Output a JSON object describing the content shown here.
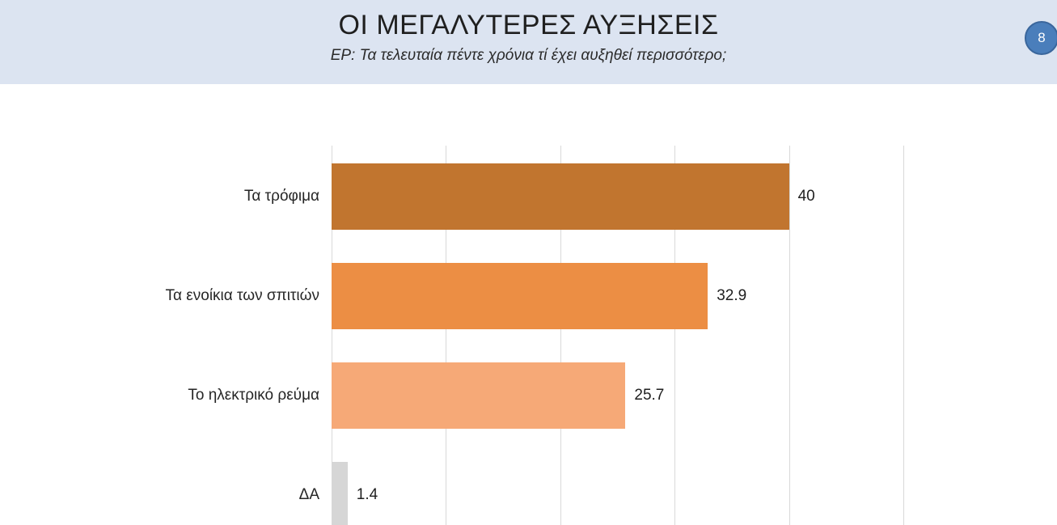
{
  "slide": {
    "title": "ΟΙ ΜΕΓΑΛΥΤΕΡΕΣ ΑΥΞΗΣΕΙΣ",
    "subtitle": "ΕΡ: Τα τελευταία πέντε χρόνια τί έχει αυξηθεί περισσότερο;",
    "page_number": "8"
  },
  "colors": {
    "header_bg": "#dce4f1",
    "badge_fill": "#4a7ebb",
    "badge_border": "#3a669c",
    "badge_text": "#ffffff",
    "gridline": "#d9d9d9",
    "text": "#262626"
  },
  "chart_data": {
    "type": "bar",
    "orientation": "horizontal",
    "title": "",
    "xlabel": "",
    "ylabel": "",
    "categories": [
      "Τα τρόφιμα",
      "Τα ενοίκια των σπιτιών",
      "Το ηλεκτρικό ρεύμα",
      "ΔΑ"
    ],
    "values": [
      40,
      32.9,
      25.7,
      1.4
    ],
    "value_labels": [
      "40",
      "32.9",
      "25.7",
      "1.4"
    ],
    "bar_colors": [
      "#c1752f",
      "#ec8e44",
      "#f6a977",
      "#d6d6d6"
    ],
    "xlim": [
      0,
      50
    ],
    "gridline_step": 10,
    "grid": true,
    "legend": false
  }
}
